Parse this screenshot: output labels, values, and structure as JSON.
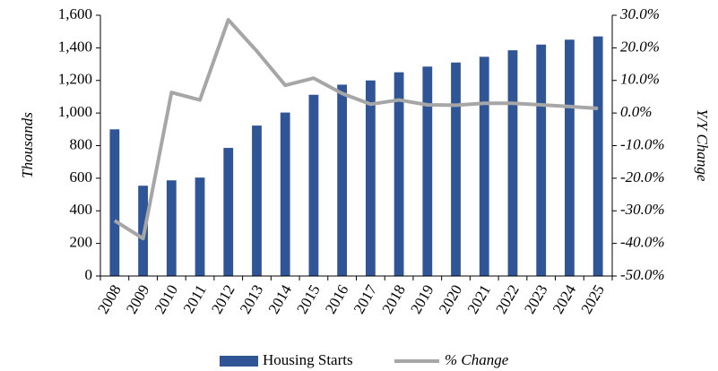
{
  "chart_data": {
    "type": "bar",
    "categories": [
      "2008",
      "2009",
      "2010",
      "2011",
      "2012",
      "2013",
      "2014",
      "2015",
      "2016",
      "2017",
      "2018",
      "2019",
      "2020",
      "2021",
      "2022",
      "2023",
      "2024",
      "2025"
    ],
    "series": [
      {
        "name": "Housing Starts",
        "type": "bar",
        "color": "#2f5597",
        "values": [
          900,
          554,
          587,
          604,
          786,
          923,
          1003,
          1112,
          1174,
          1200,
          1250,
          1285,
          1310,
          1345,
          1385,
          1420,
          1450,
          1470
        ]
      },
      {
        "name": "% Change",
        "type": "line",
        "axis": "y2",
        "color": "#a6a6a6",
        "values": [
          -33,
          -38.5,
          6.3,
          4,
          28.6,
          19,
          8.5,
          10.7,
          6,
          2.7,
          4,
          2.5,
          2.4,
          3,
          3,
          2.5,
          2,
          1.4
        ]
      }
    ],
    "ylabel": "Thousands",
    "y2label": "Y/Y Change",
    "ylim": [
      0,
      1600
    ],
    "yticks": [
      0,
      200,
      400,
      600,
      800,
      {
        "value": 1000,
        "label": "1,000"
      },
      {
        "value": 1200,
        "label": "1,200"
      },
      {
        "value": 1400,
        "label": "1,400"
      },
      {
        "value": 1600,
        "label": "1,600"
      }
    ],
    "y2lim": [
      -50,
      30
    ],
    "y2ticks": [
      {
        "value": -50,
        "label": "-50.0%"
      },
      {
        "value": -40,
        "label": "-40.0%"
      },
      {
        "value": -30,
        "label": "-30.0%"
      },
      {
        "value": -20,
        "label": "-20.0%"
      },
      {
        "value": -10,
        "label": "-10.0%"
      },
      {
        "value": 0,
        "label": "0.0%"
      },
      {
        "value": 10,
        "label": "10.0%"
      },
      {
        "value": 20,
        "label": "20.0%"
      },
      {
        "value": 30,
        "label": "30.0%"
      }
    ],
    "legend": "bottom"
  }
}
